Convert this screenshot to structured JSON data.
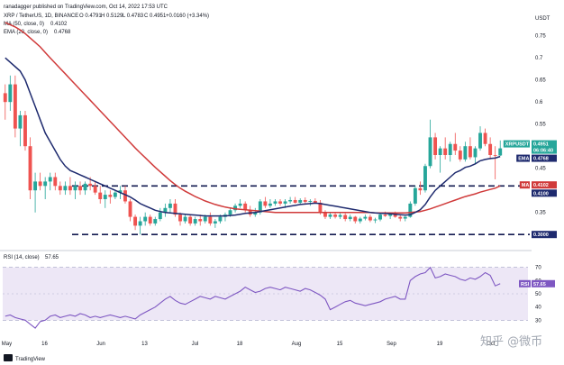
{
  "header": {
    "publish_line": "ranadagger published on TradingView.com, Oct 14, 2022 17:53 UTC",
    "symbol_line": "XRP / TetherUS, 1D, BINANCE",
    "ohlc": {
      "o": "O 0.4791",
      "h": "H 0.5129",
      "l": "L 0.4783",
      "c": "C 0.4951",
      "chg": "+0.0160 (+3.34%)"
    },
    "ma_label": "MA (50, close, 0)",
    "ma_value": "0.4102",
    "ema_label": "EMA (20, close, 0)",
    "ema_value": "0.4768",
    "quote_label": "USDT"
  },
  "rsi_header": {
    "label": "RSI (14, close)",
    "value": "57.65"
  },
  "footer": {
    "brand": "TradingView"
  },
  "watermark": "知乎 @微币",
  "colors": {
    "up": "#26a69a",
    "down": "#ef5350",
    "ema": "#1e2a6e",
    "ma": "#d03a3a",
    "rsi": "#7e57c2",
    "rsi_band": "#ede7f6",
    "axis_text": "#131722"
  },
  "chart_data": [
    {
      "type": "candlestick",
      "title": "XRP / TetherUS, 1D, BINANCE",
      "y_axis_label": "USDT",
      "y_range": [
        0.28,
        0.78
      ],
      "y_ticks": [
        0.75,
        0.7,
        0.65,
        0.6,
        0.55,
        0.5,
        0.45,
        0.35,
        0.3
      ],
      "x_tick_labels": [
        "May",
        "16",
        "Jun",
        "13",
        "Jul",
        "18",
        "Aug",
        "15",
        "Sep",
        "19",
        "Oct"
      ],
      "candles": [
        [
          0.62,
          0.64,
          0.56,
          0.6
        ],
        [
          0.6,
          0.66,
          0.58,
          0.64
        ],
        [
          0.64,
          0.66,
          0.52,
          0.54
        ],
        [
          0.54,
          0.58,
          0.5,
          0.57
        ],
        [
          0.57,
          0.58,
          0.49,
          0.5
        ],
        [
          0.5,
          0.52,
          0.38,
          0.4
        ],
        [
          0.4,
          0.44,
          0.35,
          0.42
        ],
        [
          0.42,
          0.44,
          0.4,
          0.41
        ],
        [
          0.41,
          0.43,
          0.38,
          0.42
        ],
        [
          0.42,
          0.44,
          0.4,
          0.43
        ],
        [
          0.43,
          0.44,
          0.4,
          0.41
        ],
        [
          0.41,
          0.42,
          0.39,
          0.4
        ],
        [
          0.4,
          0.42,
          0.39,
          0.41
        ],
        [
          0.41,
          0.43,
          0.39,
          0.4
        ],
        [
          0.4,
          0.42,
          0.38,
          0.41
        ],
        [
          0.41,
          0.42,
          0.39,
          0.4
        ],
        [
          0.4,
          0.42,
          0.39,
          0.415
        ],
        [
          0.415,
          0.43,
          0.4,
          0.41
        ],
        [
          0.41,
          0.42,
          0.39,
          0.395
        ],
        [
          0.395,
          0.41,
          0.37,
          0.38
        ],
        [
          0.38,
          0.4,
          0.36,
          0.39
        ],
        [
          0.39,
          0.4,
          0.37,
          0.385
        ],
        [
          0.385,
          0.4,
          0.38,
          0.395
        ],
        [
          0.395,
          0.41,
          0.38,
          0.4
        ],
        [
          0.4,
          0.41,
          0.37,
          0.375
        ],
        [
          0.375,
          0.38,
          0.33,
          0.34
        ],
        [
          0.34,
          0.345,
          0.31,
          0.32
        ],
        [
          0.32,
          0.34,
          0.3,
          0.33
        ],
        [
          0.33,
          0.35,
          0.32,
          0.34
        ],
        [
          0.34,
          0.345,
          0.32,
          0.325
        ],
        [
          0.325,
          0.34,
          0.32,
          0.335
        ],
        [
          0.335,
          0.36,
          0.33,
          0.35
        ],
        [
          0.35,
          0.37,
          0.34,
          0.36
        ],
        [
          0.36,
          0.38,
          0.35,
          0.37
        ],
        [
          0.37,
          0.38,
          0.34,
          0.345
        ],
        [
          0.345,
          0.35,
          0.32,
          0.33
        ],
        [
          0.33,
          0.345,
          0.325,
          0.34
        ],
        [
          0.34,
          0.345,
          0.32,
          0.325
        ],
        [
          0.325,
          0.34,
          0.32,
          0.335
        ],
        [
          0.335,
          0.345,
          0.32,
          0.33
        ],
        [
          0.33,
          0.345,
          0.325,
          0.34
        ],
        [
          0.34,
          0.35,
          0.32,
          0.325
        ],
        [
          0.325,
          0.335,
          0.315,
          0.33
        ],
        [
          0.33,
          0.345,
          0.325,
          0.34
        ],
        [
          0.34,
          0.35,
          0.33,
          0.345
        ],
        [
          0.345,
          0.36,
          0.34,
          0.355
        ],
        [
          0.355,
          0.37,
          0.35,
          0.365
        ],
        [
          0.365,
          0.38,
          0.36,
          0.37
        ],
        [
          0.37,
          0.375,
          0.35,
          0.355
        ],
        [
          0.355,
          0.365,
          0.34,
          0.345
        ],
        [
          0.345,
          0.36,
          0.34,
          0.35
        ],
        [
          0.35,
          0.38,
          0.345,
          0.375
        ],
        [
          0.375,
          0.385,
          0.36,
          0.365
        ],
        [
          0.365,
          0.38,
          0.36,
          0.37
        ],
        [
          0.37,
          0.38,
          0.365,
          0.375
        ],
        [
          0.375,
          0.38,
          0.365,
          0.37
        ],
        [
          0.37,
          0.38,
          0.36,
          0.375
        ],
        [
          0.375,
          0.385,
          0.37,
          0.378
        ],
        [
          0.378,
          0.385,
          0.37,
          0.372
        ],
        [
          0.372,
          0.382,
          0.368,
          0.378
        ],
        [
          0.378,
          0.384,
          0.37,
          0.374
        ],
        [
          0.374,
          0.38,
          0.365,
          0.376
        ],
        [
          0.376,
          0.382,
          0.37,
          0.372
        ],
        [
          0.372,
          0.378,
          0.345,
          0.35
        ],
        [
          0.35,
          0.355,
          0.335,
          0.34
        ],
        [
          0.34,
          0.35,
          0.335,
          0.345
        ],
        [
          0.345,
          0.35,
          0.336,
          0.34
        ],
        [
          0.34,
          0.348,
          0.335,
          0.344
        ],
        [
          0.344,
          0.348,
          0.33,
          0.335
        ],
        [
          0.335,
          0.345,
          0.33,
          0.34
        ],
        [
          0.34,
          0.342,
          0.325,
          0.33
        ],
        [
          0.33,
          0.34,
          0.325,
          0.336
        ],
        [
          0.336,
          0.345,
          0.332,
          0.34
        ],
        [
          0.34,
          0.345,
          0.328,
          0.332
        ],
        [
          0.332,
          0.338,
          0.326,
          0.334
        ],
        [
          0.334,
          0.35,
          0.33,
          0.345
        ],
        [
          0.345,
          0.352,
          0.34,
          0.342
        ],
        [
          0.342,
          0.35,
          0.335,
          0.348
        ],
        [
          0.348,
          0.352,
          0.338,
          0.34
        ],
        [
          0.34,
          0.345,
          0.33,
          0.336
        ],
        [
          0.336,
          0.342,
          0.33,
          0.34
        ],
        [
          0.34,
          0.375,
          0.338,
          0.37
        ],
        [
          0.37,
          0.41,
          0.365,
          0.405
        ],
        [
          0.405,
          0.42,
          0.39,
          0.4
        ],
        [
          0.4,
          0.46,
          0.395,
          0.455
        ],
        [
          0.455,
          0.56,
          0.45,
          0.52
        ],
        [
          0.52,
          0.53,
          0.47,
          0.48
        ],
        [
          0.48,
          0.5,
          0.44,
          0.495
        ],
        [
          0.495,
          0.52,
          0.47,
          0.48
        ],
        [
          0.48,
          0.51,
          0.465,
          0.505
        ],
        [
          0.505,
          0.53,
          0.48,
          0.49
        ],
        [
          0.49,
          0.5,
          0.465,
          0.47
        ],
        [
          0.47,
          0.51,
          0.465,
          0.5
        ],
        [
          0.5,
          0.52,
          0.47,
          0.475
        ],
        [
          0.475,
          0.5,
          0.46,
          0.495
        ],
        [
          0.495,
          0.545,
          0.49,
          0.53
        ],
        [
          0.53,
          0.54,
          0.5,
          0.505
        ],
        [
          0.505,
          0.52,
          0.47,
          0.48
        ],
        [
          0.48,
          0.5,
          0.425,
          0.479
        ],
        [
          0.479,
          0.513,
          0.478,
          0.4951
        ]
      ],
      "ema20": [
        0.7,
        0.69,
        0.68,
        0.67,
        0.65,
        0.62,
        0.59,
        0.56,
        0.53,
        0.51,
        0.49,
        0.47,
        0.455,
        0.445,
        0.44,
        0.435,
        0.43,
        0.425,
        0.42,
        0.415,
        0.41,
        0.405,
        0.4,
        0.395,
        0.39,
        0.385,
        0.378,
        0.37,
        0.365,
        0.36,
        0.355,
        0.352,
        0.35,
        0.349,
        0.348,
        0.347,
        0.346,
        0.345,
        0.344,
        0.343,
        0.342,
        0.342,
        0.342,
        0.342,
        0.342,
        0.343,
        0.344,
        0.346,
        0.348,
        0.349,
        0.35,
        0.352,
        0.354,
        0.356,
        0.358,
        0.36,
        0.362,
        0.364,
        0.366,
        0.368,
        0.369,
        0.37,
        0.371,
        0.37,
        0.368,
        0.366,
        0.364,
        0.362,
        0.36,
        0.358,
        0.356,
        0.354,
        0.352,
        0.35,
        0.349,
        0.348,
        0.348,
        0.347,
        0.346,
        0.345,
        0.344,
        0.345,
        0.35,
        0.356,
        0.368,
        0.385,
        0.4,
        0.41,
        0.42,
        0.43,
        0.44,
        0.445,
        0.452,
        0.455,
        0.46,
        0.467,
        0.47,
        0.472,
        0.473,
        0.4768
      ],
      "ma50": [
        0.78,
        0.775,
        0.77,
        0.763,
        0.755,
        0.745,
        0.735,
        0.725,
        0.712,
        0.7,
        0.688,
        0.676,
        0.664,
        0.652,
        0.64,
        0.628,
        0.616,
        0.604,
        0.592,
        0.58,
        0.568,
        0.556,
        0.544,
        0.532,
        0.52,
        0.508,
        0.496,
        0.485,
        0.474,
        0.463,
        0.452,
        0.442,
        0.432,
        0.422,
        0.413,
        0.405,
        0.398,
        0.392,
        0.386,
        0.381,
        0.376,
        0.372,
        0.368,
        0.365,
        0.362,
        0.36,
        0.358,
        0.357,
        0.356,
        0.355,
        0.354,
        0.353,
        0.352,
        0.351,
        0.35,
        0.35,
        0.35,
        0.35,
        0.35,
        0.35,
        0.35,
        0.35,
        0.35,
        0.35,
        0.35,
        0.35,
        0.35,
        0.35,
        0.35,
        0.35,
        0.35,
        0.35,
        0.35,
        0.35,
        0.349,
        0.349,
        0.349,
        0.349,
        0.349,
        0.349,
        0.349,
        0.35,
        0.351,
        0.352,
        0.355,
        0.358,
        0.362,
        0.366,
        0.37,
        0.374,
        0.378,
        0.382,
        0.386,
        0.389,
        0.392,
        0.396,
        0.399,
        0.402,
        0.405,
        0.4102
      ],
      "price_tags": [
        {
          "label": "XRPUSDT",
          "value": "0.4951",
          "countdown": "06:06:40",
          "color": "#26a69a"
        },
        {
          "label": "EMA",
          "value": "0.4768",
          "color": "#1e2a6e"
        },
        {
          "label": "MA",
          "value": "0.4102",
          "color": "#d03a3a"
        },
        {
          "value": "0.4100",
          "color": "#1e2a6e"
        },
        {
          "value": "0.3000",
          "color": "#1e2a6e"
        }
      ],
      "support_levels": [
        0.41,
        0.3
      ]
    },
    {
      "type": "line",
      "title": "RSI (14, close)",
      "y_range": [
        20,
        80
      ],
      "y_ticks": [
        70.0,
        60.0,
        50.0,
        40.0,
        30.0
      ],
      "band": [
        30,
        70
      ],
      "rsi": [
        33,
        34,
        32,
        31,
        30,
        27,
        24,
        29,
        30,
        33,
        34,
        32,
        33,
        34,
        33,
        35,
        34,
        32,
        33,
        32,
        33,
        34,
        33,
        32,
        33,
        32,
        31,
        34,
        36,
        38,
        40,
        43,
        46,
        48,
        45,
        43,
        42,
        44,
        46,
        48,
        47,
        46,
        48,
        47,
        46,
        48,
        50,
        52,
        55,
        53,
        51,
        52,
        54,
        55,
        54,
        53,
        55,
        54,
        53,
        52,
        54,
        53,
        51,
        49,
        46,
        38,
        40,
        42,
        44,
        45,
        43,
        42,
        41,
        42,
        43,
        44,
        46,
        47,
        48,
        46,
        46,
        60,
        63,
        65,
        66,
        70,
        62,
        63,
        65,
        64,
        63,
        61,
        60,
        62,
        61,
        63,
        66,
        64,
        56,
        57.65
      ],
      "end_tag": {
        "label": "RSI",
        "value": "57.65",
        "color": "#7e57c2"
      }
    }
  ]
}
